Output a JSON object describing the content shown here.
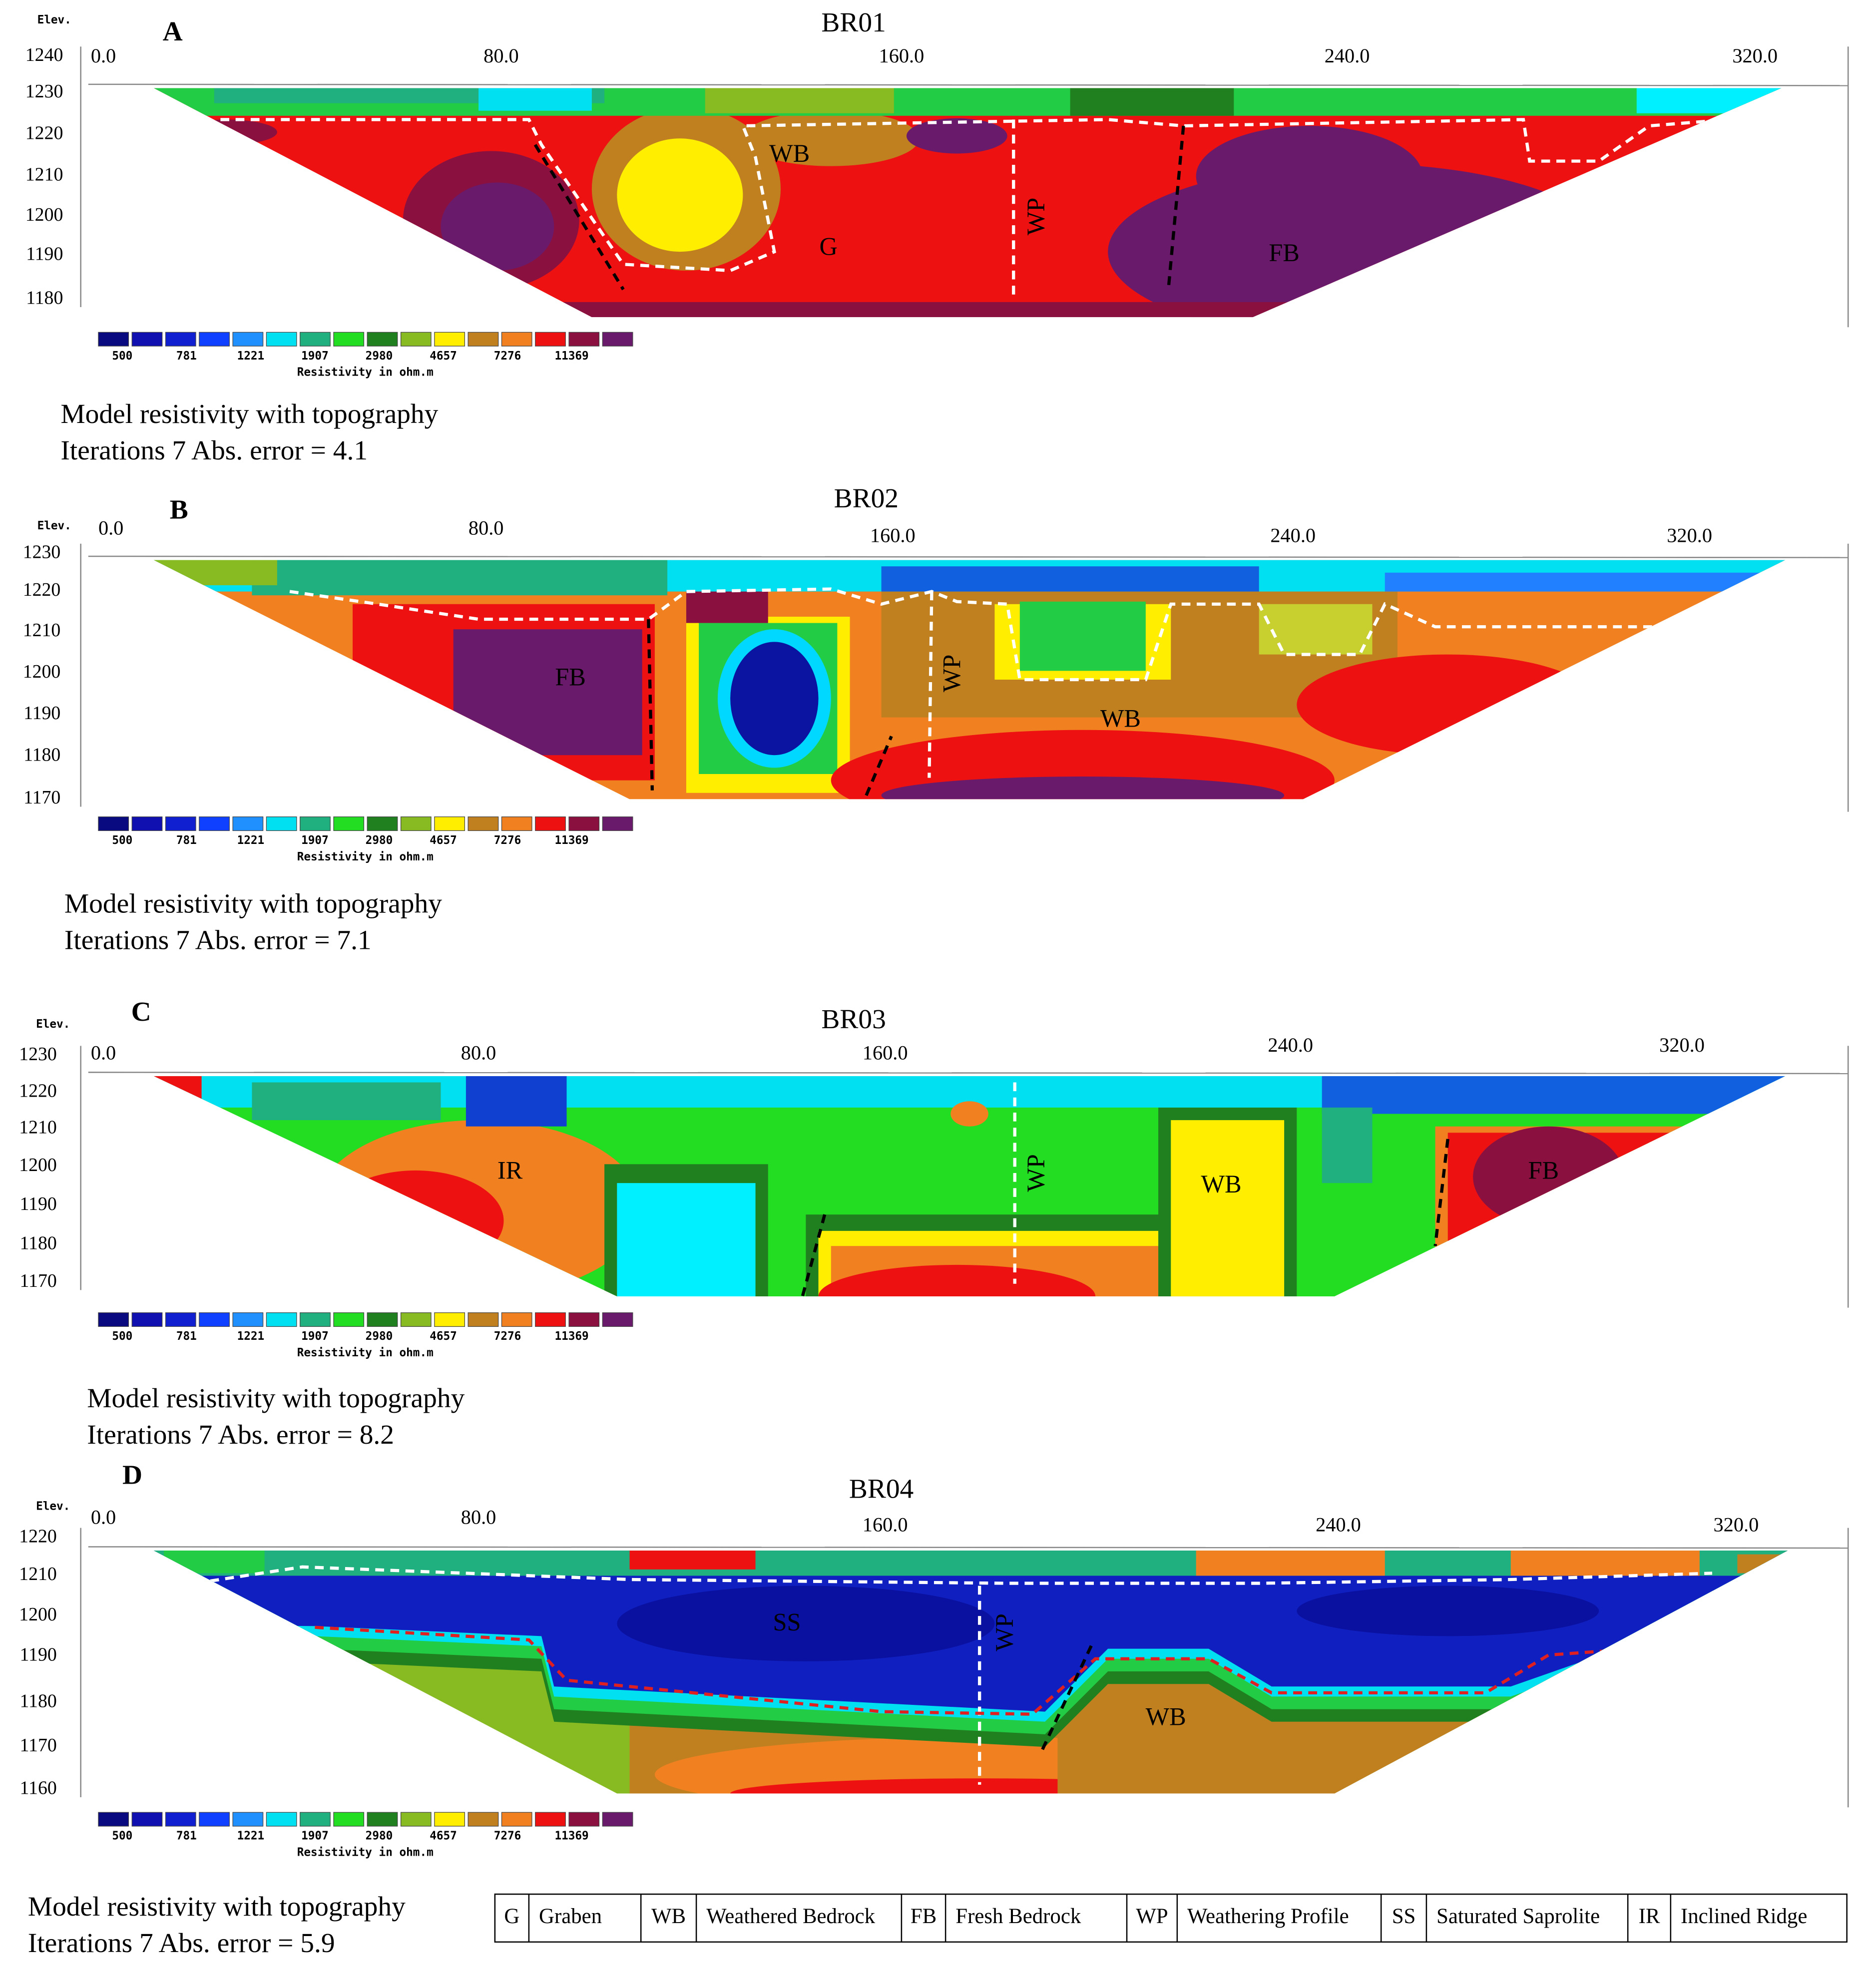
{
  "panels": [
    {
      "letter": "A",
      "title": "BR01",
      "elev_label": "Elev.",
      "elevations": [
        "1240",
        "1230",
        "1220",
        "1210",
        "1200",
        "1190",
        "1180"
      ],
      "distances": [
        "0.0",
        "80.0",
        "160.0",
        "240.0",
        "320.0"
      ],
      "zones": [
        "WB",
        "G",
        "WP",
        "FB"
      ],
      "caption": [
        "Model resistivity with topography",
        "Iterations 7 Abs. error = 4.1"
      ]
    },
    {
      "letter": "B",
      "title": "BR02",
      "elev_label": "Elev.",
      "elevations": [
        "1230",
        "1220",
        "1210",
        "1200",
        "1190",
        "1180",
        "1170"
      ],
      "distances": [
        "0.0",
        "80.0",
        "160.0",
        "240.0",
        "320.0"
      ],
      "zones": [
        "FB",
        "WP",
        "WB"
      ],
      "caption": [
        "Model resistivity with topography",
        "Iterations 7 Abs. error = 7.1"
      ]
    },
    {
      "letter": "C",
      "title": "BR03",
      "elev_label": "Elev.",
      "elevations": [
        "1230",
        "1220",
        "1210",
        "1200",
        "1190",
        "1180",
        "1170"
      ],
      "distances": [
        "0.0",
        "80.0",
        "160.0",
        "240.0",
        "320.0"
      ],
      "zones": [
        "IR",
        "WP",
        "WB",
        "FB"
      ],
      "caption": [
        "Model resistivity with topography",
        "Iterations 7 Abs. error = 8.2"
      ]
    },
    {
      "letter": "D",
      "title": "BR04",
      "elev_label": "Elev.",
      "elevations": [
        "1220",
        "1210",
        "1200",
        "1190",
        "1180",
        "1170",
        "1160"
      ],
      "distances": [
        "0.0",
        "80.0",
        "160.0",
        "240.0",
        "320.0"
      ],
      "zones": [
        "SS",
        "WP",
        "WB"
      ],
      "caption": [
        "Model resistivity with topography",
        "Iterations 7 Abs. error = 5.9"
      ]
    }
  ],
  "colorbar": {
    "labels": [
      "500",
      "781",
      "1221",
      "1907",
      "2980",
      "4657",
      "7276",
      "11369"
    ],
    "title": "Resistivity in ohm.m"
  },
  "legend_table": [
    [
      "G",
      "Graben"
    ],
    [
      "WB",
      "Weathered Bedrock"
    ],
    [
      "FB",
      "Fresh Bedrock"
    ],
    [
      "WP",
      "Weathering Profile"
    ],
    [
      "SS",
      "Saturated Saprolite"
    ],
    [
      "IR",
      "Inclined Ridge"
    ]
  ]
}
